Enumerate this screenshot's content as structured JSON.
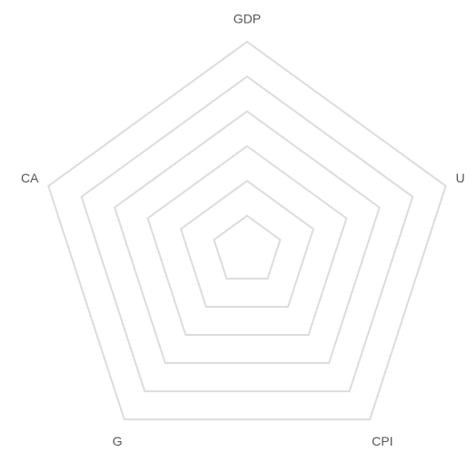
{
  "chart_data": {
    "type": "radar",
    "categories": [
      "GDP",
      "U",
      "CPI",
      "G",
      "CA"
    ],
    "grid": true
  }
}
